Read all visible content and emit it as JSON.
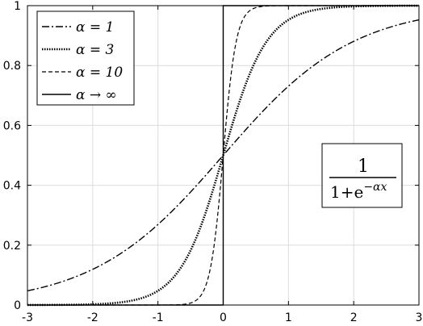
{
  "chart_data": {
    "type": "line",
    "title": "",
    "xlabel": "",
    "ylabel": "",
    "xlim": [
      -3,
      3
    ],
    "ylim": [
      0,
      1
    ],
    "x_ticks": [
      "-3",
      "-2",
      "-1",
      "0",
      "1",
      "2",
      "3"
    ],
    "y_ticks": [
      "0",
      "0.2",
      "0.4",
      "0.6",
      "0.8",
      "1"
    ],
    "grid": true,
    "legend_position": "top-left",
    "series": [
      {
        "name": "α = 1",
        "alpha": 1,
        "style": "dash-dot"
      },
      {
        "name": "α = 3",
        "alpha": 3,
        "style": "dotted"
      },
      {
        "name": "α = 10",
        "alpha": 10,
        "style": "dashed"
      },
      {
        "name": "α → ∞",
        "alpha": "infinity",
        "style": "solid"
      }
    ],
    "annotation": {
      "numerator": "1",
      "denominator_base": "1+e",
      "denominator_exponent": "−αx"
    },
    "colors": {
      "line": "#000000",
      "grid": "#dcdcdc",
      "axes": "#000000"
    }
  }
}
